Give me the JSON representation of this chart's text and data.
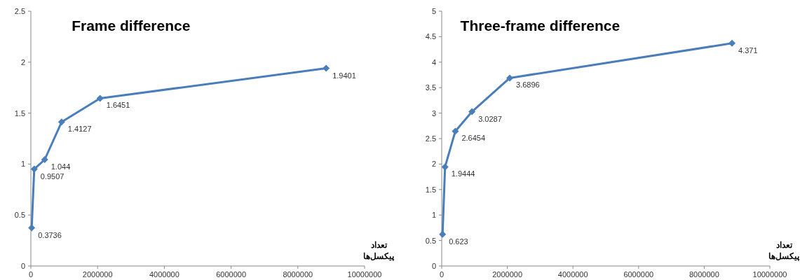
{
  "chart_data": [
    {
      "type": "line",
      "title": "Frame difference",
      "xlabel": "تعداد\nپیکسل‌ها",
      "x": [
        25344,
        101376,
        414720,
        921600,
        2073600,
        8847360
      ],
      "series": [
        {
          "color": "#4a7ebb",
          "values": [
            0.3736,
            0.9507,
            1.044,
            1.4127,
            1.6451,
            1.9401
          ]
        }
      ],
      "xlim": [
        0,
        10000000
      ],
      "xticks": [
        0,
        2000000,
        4000000,
        6000000,
        8000000,
        10000000
      ],
      "ylim": [
        0,
        2.5
      ],
      "yticks": [
        0,
        0.5,
        1,
        1.5,
        2,
        2.5
      ],
      "marker": "diamond",
      "data_labels": true
    },
    {
      "type": "line",
      "title": "Three-frame difference",
      "xlabel": "تعداد\nپیکسل‌ها",
      "x": [
        25344,
        101376,
        414720,
        921600,
        2073600,
        8847360
      ],
      "series": [
        {
          "color": "#4a7ebb",
          "values": [
            0.623,
            1.9444,
            2.6454,
            3.0287,
            3.6896,
            4.371
          ]
        }
      ],
      "xlim": [
        0,
        10000000
      ],
      "xticks": [
        0,
        2000000,
        4000000,
        6000000,
        8000000,
        10000000
      ],
      "ylim": [
        0,
        5
      ],
      "yticks": [
        0,
        0.5,
        1,
        1.5,
        2,
        2.5,
        3,
        3.5,
        4,
        4.5,
        5
      ],
      "marker": "diamond",
      "data_labels": true
    }
  ]
}
